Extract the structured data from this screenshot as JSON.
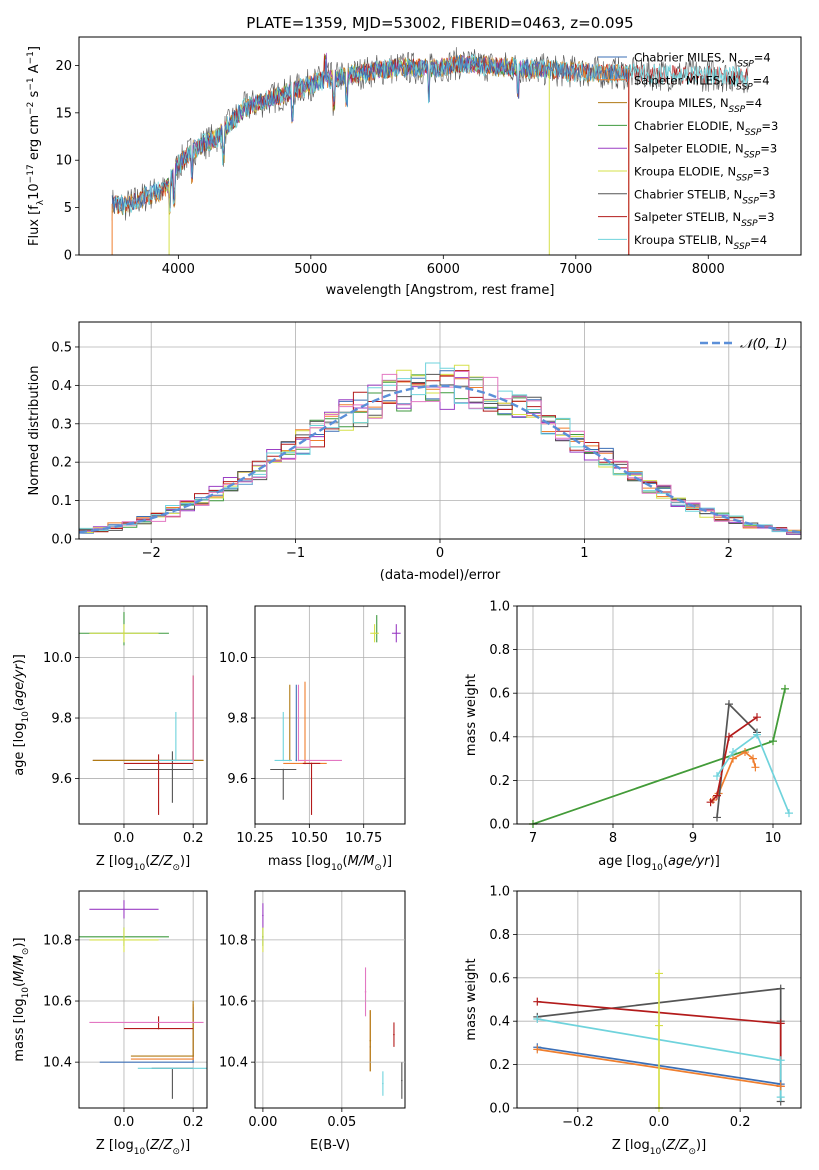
{
  "figure": {
    "title": "PLATE=1359, MJD=53002, FIBERID=0463, z=0.095"
  },
  "colors": {
    "Chabrier MILES": "#3b6fb6",
    "Salpeter MILES": "#ef7f2f",
    "Kroupa MILES": "#b07a14",
    "Chabrier ELODIE": "#3f9a3f",
    "Salpeter ELODIE": "#9b3fc4",
    "Kroupa ELODIE": "#d6e04a",
    "Chabrier STELIB": "#555555",
    "Salpeter STELIB": "#b31b1b",
    "Kroupa STELIB": "#6fd3dc",
    "pink": "#e377c2",
    "gaussian": "#5b8fd8",
    "grid": "#b0b0b0"
  },
  "chart_data": [
    {
      "id": "spectrum",
      "type": "line",
      "xlabel": "wavelength [Angstrom, rest frame]",
      "ylabel": "Flux [f_λ10^-17 erg cm^-2 s^-1 A^-1]",
      "xlim": [
        3250,
        8700
      ],
      "ylim": [
        0,
        23
      ],
      "xticks": [
        4000,
        5000,
        6000,
        7000,
        8000
      ],
      "yticks": [
        0,
        5,
        10,
        15,
        20
      ],
      "grid": false,
      "legend_placement": "top-right",
      "legend": [
        {
          "label": "Chabrier MILES, N_SSP=4",
          "model": "Chabrier MILES",
          "n": "4"
        },
        {
          "label": "Salpeter MILES, N_SSP=4",
          "model": "Salpeter MILES",
          "n": "4"
        },
        {
          "label": "Kroupa MILES, N_SSP=4",
          "model": "Kroupa MILES",
          "n": "4"
        },
        {
          "label": "Chabrier ELODIE, N_SSP=3",
          "model": "Chabrier ELODIE",
          "n": "3"
        },
        {
          "label": "Salpeter ELODIE, N_SSP=3",
          "model": "Salpeter ELODIE",
          "n": "3"
        },
        {
          "label": "Kroupa ELODIE, N_SSP=3",
          "model": "Kroupa ELODIE",
          "n": "3"
        },
        {
          "label": "Chabrier STELIB, N_SSP=3",
          "model": "Chabrier STELIB",
          "n": "3"
        },
        {
          "label": "Salpeter STELIB, N_SSP=3",
          "model": "Salpeter STELIB",
          "n": "3"
        },
        {
          "label": "Kroupa STELIB, N_SSP=4",
          "model": "Kroupa STELIB",
          "n": "4"
        }
      ],
      "continuum": {
        "x": [
          3450,
          3600,
          3700,
          3800,
          3900,
          4000,
          4100,
          4200,
          4300,
          4400,
          4500,
          4700,
          4900,
          5100,
          5300,
          5500,
          5700,
          5900,
          6100,
          6300,
          6500,
          6700,
          6900,
          7100,
          7300,
          7500,
          7700,
          7900,
          8100,
          8300
        ],
        "y": [
          5.5,
          5.2,
          5.8,
          6.5,
          6.8,
          9.5,
          11.0,
          11.8,
          12.5,
          14.0,
          15.5,
          16.5,
          17.5,
          18.5,
          19.0,
          19.5,
          19.8,
          19.6,
          20.2,
          20.0,
          19.8,
          19.6,
          19.4,
          19.3,
          19.2,
          19.1,
          19.0,
          19.0,
          18.9,
          18.8
        ]
      },
      "model_ranges": {
        "MILES": [
          3500,
          7400
        ],
        "ELODIE": [
          3900,
          6800
        ],
        "STELIB": [
          3500,
          8300
        ]
      }
    },
    {
      "id": "residual-histogram",
      "type": "bar",
      "xlabel": "(data-model)/error",
      "ylabel": "Normed distribution",
      "xlim": [
        -2.5,
        2.5
      ],
      "ylim": [
        0,
        0.565
      ],
      "xticks": [
        -2,
        -1,
        0,
        1,
        2
      ],
      "yticks": [
        0.0,
        0.1,
        0.2,
        0.3,
        0.4,
        0.5
      ],
      "grid": true,
      "legend_placement": "top-right",
      "legend": [
        {
          "label": "𝒩(0, 1)"
        }
      ],
      "bin_edges_start": -2.5,
      "bin_width": 0.1,
      "bin_count": 50
    },
    {
      "id": "age-vs-metallicity",
      "type": "scatter",
      "xlabel": "Z [log10(Z/Z⊙)]",
      "ylabel": "age [log10(age/yr)]",
      "xlim": [
        -0.13,
        0.24
      ],
      "ylim": [
        9.45,
        10.17
      ],
      "xticks": [
        0.0,
        0.2
      ],
      "yticks": [
        9.6,
        9.8,
        10.0
      ],
      "grid": true,
      "points": [
        {
          "model": "Chabrier MILES",
          "x": 0.2,
          "y": 9.66,
          "xerr": [
            0.29,
            0.03
          ],
          "yerr": [
            0.0,
            0.28
          ]
        },
        {
          "model": "Salpeter MILES",
          "x": 0.2,
          "y": 9.66,
          "xerr": [
            0.29,
            0.03
          ],
          "yerr": [
            0.0,
            0.28
          ]
        },
        {
          "model": "Kroupa MILES",
          "x": 0.2,
          "y": 9.66,
          "xerr": [
            0.29,
            0.03
          ],
          "yerr": [
            0.0,
            0.28
          ]
        },
        {
          "model": "Chabrier ELODIE",
          "x": 0.0,
          "y": 10.08,
          "xerr": [
            0.13,
            0.13
          ],
          "yerr": [
            0.04,
            0.07
          ]
        },
        {
          "model": "Salpeter ELODIE",
          "x": 0.0,
          "y": 10.08,
          "xerr": [
            0.0,
            0.0
          ],
          "yerr": [
            0.0,
            0.0
          ]
        },
        {
          "model": "Kroupa ELODIE",
          "x": 0.0,
          "y": 10.08,
          "xerr": [
            0.1,
            0.1
          ],
          "yerr": [
            0.03,
            0.03
          ]
        },
        {
          "model": "Chabrier STELIB",
          "x": 0.14,
          "y": 9.63,
          "xerr": [
            0.13,
            0.06
          ],
          "yerr": [
            0.11,
            0.06
          ]
        },
        {
          "model": "Salpeter STELIB",
          "x": 0.1,
          "y": 9.65,
          "xerr": [
            0.1,
            0.1
          ],
          "yerr": [
            0.17,
            0.03
          ]
        },
        {
          "model": "Kroupa STELIB",
          "x": 0.15,
          "y": 9.66,
          "xerr": [
            0.05,
            0.05
          ],
          "yerr": [
            0.0,
            0.16
          ]
        },
        {
          "model": "pink",
          "x": 0.2,
          "y": 9.66,
          "xerr": [
            0.0,
            0.0
          ],
          "yerr": [
            0.0,
            0.28
          ]
        }
      ]
    },
    {
      "id": "age-vs-mass",
      "type": "scatter",
      "xlabel": "mass [log10(M/M⊙)]",
      "ylabel": "",
      "xlim": [
        10.25,
        10.94
      ],
      "ylim": [
        9.45,
        10.17
      ],
      "xticks": [
        10.25,
        10.5,
        10.75
      ],
      "yticks": [
        9.6,
        9.8,
        10.0
      ],
      "grid": true,
      "points": [
        {
          "model": "Chabrier MILES",
          "x": 10.44,
          "y": 9.66,
          "xerr": [
            0.0,
            0.0
          ],
          "yerr": [
            0.0,
            0.25
          ]
        },
        {
          "model": "Salpeter MILES",
          "x": 10.48,
          "y": 9.65,
          "xerr": [
            0.1,
            0.1
          ],
          "yerr": [
            0.0,
            0.27
          ]
        },
        {
          "model": "Kroupa MILES",
          "x": 10.41,
          "y": 9.66,
          "xerr": [
            0.0,
            0.0
          ],
          "yerr": [
            0.0,
            0.25
          ]
        },
        {
          "model": "Chabrier ELODIE",
          "x": 10.81,
          "y": 10.08,
          "xerr": [
            0.0,
            0.0
          ],
          "yerr": [
            0.03,
            0.06
          ]
        },
        {
          "model": "Salpeter ELODIE",
          "x": 10.9,
          "y": 10.08,
          "xerr": [
            0.02,
            0.02
          ],
          "yerr": [
            0.03,
            0.03
          ]
        },
        {
          "model": "Kroupa ELODIE",
          "x": 10.8,
          "y": 10.08,
          "xerr": [
            0.02,
            0.02
          ],
          "yerr": [
            0.03,
            0.03
          ]
        },
        {
          "model": "Chabrier STELIB",
          "x": 10.38,
          "y": 9.63,
          "xerr": [
            0.06,
            0.06
          ],
          "yerr": [
            0.1,
            0.0
          ]
        },
        {
          "model": "Salpeter STELIB",
          "x": 10.51,
          "y": 9.65,
          "xerr": [
            0.04,
            0.04
          ],
          "yerr": [
            0.17,
            0.0
          ]
        },
        {
          "model": "Kroupa STELIB",
          "x": 10.38,
          "y": 9.66,
          "xerr": [
            0.04,
            0.04
          ],
          "yerr": [
            0.0,
            0.16
          ]
        },
        {
          "model": "pink",
          "x": 10.45,
          "y": 9.66,
          "xerr": [
            0.0,
            0.2
          ],
          "yerr": [
            0.0,
            0.25
          ]
        }
      ]
    },
    {
      "id": "massweight-vs-age",
      "type": "line",
      "xlabel": "age [log10(age/yr)]",
      "ylabel": "mass weight",
      "xlim": [
        6.8,
        10.35
      ],
      "ylim": [
        0.0,
        1.0
      ],
      "xticks": [
        7,
        8,
        9,
        10
      ],
      "yticks": [
        0.0,
        0.2,
        0.4,
        0.6,
        0.8,
        1.0
      ],
      "grid": true,
      "series": [
        {
          "model": "Kroupa ELODIE",
          "x": [
            7.0,
            10.0,
            10.15
          ],
          "y": [
            0.0,
            0.38,
            0.62
          ]
        },
        {
          "model": "Chabrier ELODIE",
          "x": [
            7.0,
            10.0,
            10.15
          ],
          "y": [
            0.0,
            0.38,
            0.62
          ]
        },
        {
          "model": "Salpeter MILES",
          "x": [
            9.25,
            9.32,
            9.5,
            9.65,
            9.75,
            9.78
          ],
          "y": [
            0.11,
            0.14,
            0.3,
            0.33,
            0.3,
            0.26
          ]
        },
        {
          "model": "Chabrier STELIB",
          "x": [
            9.3,
            9.45,
            9.8
          ],
          "y": [
            0.03,
            0.55,
            0.42
          ]
        },
        {
          "model": "Salpeter STELIB",
          "x": [
            9.22,
            9.3,
            9.45,
            9.8
          ],
          "y": [
            0.1,
            0.13,
            0.4,
            0.49
          ]
        },
        {
          "model": "Kroupa STELIB",
          "x": [
            9.3,
            9.5,
            9.8,
            10.2
          ],
          "y": [
            0.22,
            0.33,
            0.41,
            0.05
          ]
        }
      ]
    },
    {
      "id": "mass-vs-metallicity",
      "type": "scatter",
      "xlabel": "Z [log10(Z/Z⊙)]",
      "ylabel": "mass [log10(M/M⊙)]",
      "xlim": [
        -0.13,
        0.24
      ],
      "ylim": [
        10.25,
        10.96
      ],
      "xticks": [
        0.0,
        0.2
      ],
      "yticks": [
        10.4,
        10.6,
        10.8
      ],
      "grid": true,
      "points": [
        {
          "model": "Chabrier MILES",
          "x": 0.2,
          "y": 10.4,
          "xerr": [
            0.27,
            0.0
          ],
          "yerr": [
            0.0,
            0.18
          ]
        },
        {
          "model": "Salpeter MILES",
          "x": 0.2,
          "y": 10.41,
          "xerr": [
            0.18,
            0.0
          ],
          "yerr": [
            0.0,
            0.18
          ]
        },
        {
          "model": "Kroupa MILES",
          "x": 0.2,
          "y": 10.42,
          "xerr": [
            0.18,
            0.0
          ],
          "yerr": [
            0.0,
            0.18
          ]
        },
        {
          "model": "Chabrier ELODIE",
          "x": 0.0,
          "y": 10.81,
          "xerr": [
            0.13,
            0.13
          ],
          "yerr": [
            0.03,
            0.03
          ]
        },
        {
          "model": "Salpeter ELODIE",
          "x": 0.0,
          "y": 10.9,
          "xerr": [
            0.1,
            0.1
          ],
          "yerr": [
            0.03,
            0.03
          ]
        },
        {
          "model": "Kroupa ELODIE",
          "x": 0.0,
          "y": 10.8,
          "xerr": [
            0.1,
            0.1
          ],
          "yerr": [
            0.04,
            0.04
          ]
        },
        {
          "model": "Chabrier STELIB",
          "x": 0.14,
          "y": 10.38,
          "xerr": [
            0.06,
            0.06
          ],
          "yerr": [
            0.1,
            0.0
          ]
        },
        {
          "model": "Salpeter STELIB",
          "x": 0.1,
          "y": 10.51,
          "xerr": [
            0.1,
            0.1
          ],
          "yerr": [
            0.0,
            0.04
          ]
        },
        {
          "model": "Kroupa STELIB",
          "x": 0.14,
          "y": 10.38,
          "xerr": [
            0.1,
            0.1
          ],
          "yerr": [
            0.0,
            0.0
          ]
        },
        {
          "model": "pink",
          "x": 0.2,
          "y": 10.53,
          "xerr": [
            0.3,
            0.03
          ],
          "yerr": [
            0.0,
            0.0
          ]
        }
      ]
    },
    {
      "id": "mass-vs-extinction",
      "type": "scatter",
      "xlabel": "E(B-V)",
      "ylabel": "",
      "xlim": [
        -0.005,
        0.09
      ],
      "ylim": [
        10.25,
        10.96
      ],
      "xticks": [
        0.0,
        0.05
      ],
      "grid": true,
      "points": [
        {
          "model": "Chabrier MILES",
          "x": 0.068,
          "y": 10.45,
          "yerr": [
            0.0,
            0.0
          ]
        },
        {
          "model": "Salpeter MILES",
          "x": 0.068,
          "y": 10.47,
          "yerr": [
            0.1,
            0.1
          ]
        },
        {
          "model": "Kroupa MILES",
          "x": 0.068,
          "y": 10.47,
          "yerr": [
            0.1,
            0.1
          ]
        },
        {
          "model": "Chabrier ELODIE",
          "x": 0.0,
          "y": 10.81,
          "yerr": [
            0.03,
            0.03
          ]
        },
        {
          "model": "Salpeter ELODIE",
          "x": 0.0,
          "y": 10.88,
          "yerr": [
            0.04,
            0.04
          ]
        },
        {
          "model": "Kroupa ELODIE",
          "x": 0.0,
          "y": 10.8,
          "yerr": [
            0.04,
            0.04
          ]
        },
        {
          "model": "Chabrier STELIB",
          "x": 0.088,
          "y": 10.34,
          "yerr": [
            0.06,
            0.06
          ]
        },
        {
          "model": "Salpeter STELIB",
          "x": 0.083,
          "y": 10.49,
          "yerr": [
            0.04,
            0.04
          ]
        },
        {
          "model": "Kroupa STELIB",
          "x": 0.076,
          "y": 10.33,
          "yerr": [
            0.04,
            0.04
          ]
        },
        {
          "model": "pink",
          "x": 0.065,
          "y": 10.63,
          "yerr": [
            0.08,
            0.08
          ]
        }
      ]
    },
    {
      "id": "massweight-vs-metallicity",
      "type": "line",
      "xlabel": "Z [log10(Z/Z⊙)]",
      "ylabel": "mass weight",
      "xlim": [
        -0.35,
        0.35
      ],
      "ylim": [
        0.0,
        1.0
      ],
      "xticks": [
        -0.2,
        0.0,
        0.2
      ],
      "yticks": [
        0.0,
        0.2,
        0.4,
        0.6,
        0.8,
        1.0
      ],
      "grid": true,
      "series": [
        {
          "model": "Chabrier STELIB",
          "x": [
            -0.3,
            0.3,
            0.3,
            0.3
          ],
          "y": [
            0.42,
            0.55,
            0.03,
            0.4
          ]
        },
        {
          "model": "Salpeter STELIB",
          "x": [
            -0.3,
            0.3,
            0.3
          ],
          "y": [
            0.49,
            0.39,
            0.1
          ]
        },
        {
          "model": "Kroupa STELIB",
          "x": [
            -0.3,
            0.3,
            0.3
          ],
          "y": [
            0.41,
            0.22,
            0.05
          ]
        },
        {
          "model": "Chabrier MILES",
          "x": [
            -0.3,
            0.3
          ],
          "y": [
            0.28,
            0.11
          ]
        },
        {
          "model": "Salpeter MILES",
          "x": [
            -0.3,
            0.3
          ],
          "y": [
            0.27,
            0.1
          ]
        },
        {
          "model": "Kroupa ELODIE",
          "x": [
            0.0,
            0.0,
            0.0
          ],
          "y": [
            0.0,
            0.62,
            0.38
          ]
        }
      ]
    }
  ]
}
